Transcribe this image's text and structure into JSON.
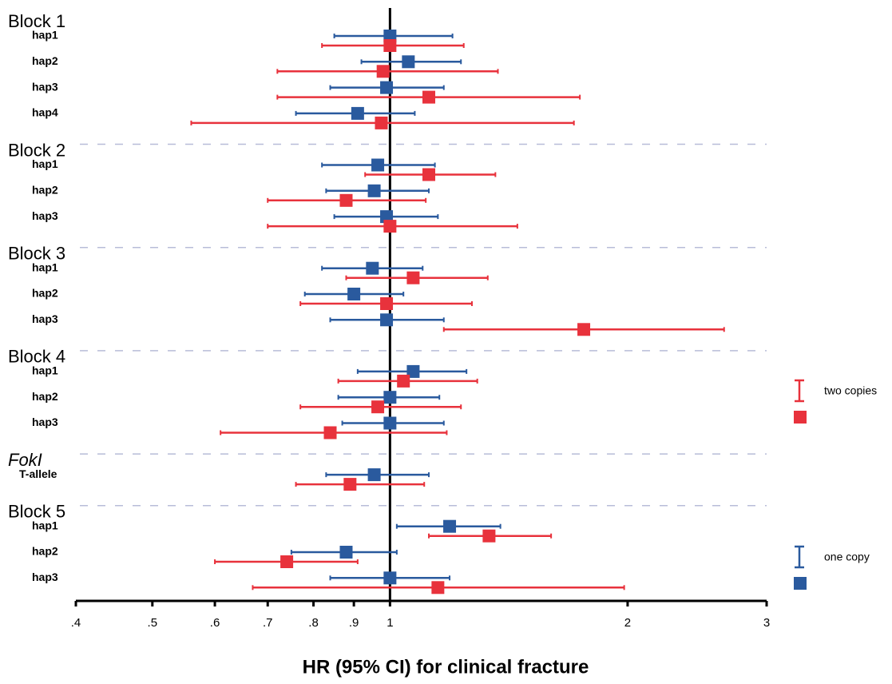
{
  "chart_data": {
    "type": "forest",
    "xlabel": "HR (95% CI) for clinical fracture",
    "xlim": [
      0.4,
      3
    ],
    "log_x": true,
    "reference_line": 1,
    "xticks": [
      {
        "value": 0.4,
        "label": ".4"
      },
      {
        "value": 0.5,
        "label": ".5"
      },
      {
        "value": 0.6,
        "label": ".6"
      },
      {
        "value": 0.7,
        "label": ".7"
      },
      {
        "value": 0.8,
        "label": ".8"
      },
      {
        "value": 0.9,
        "label": ".9"
      },
      1,
      2,
      3
    ],
    "groups": [
      {
        "name": "Block 1",
        "categories": [
          "hap1",
          "hap2",
          "hap3",
          "hap4"
        ]
      },
      {
        "name": "Block 2",
        "categories": [
          "hap1",
          "hap2",
          "hap3"
        ]
      },
      {
        "name": "Block 3",
        "categories": [
          "hap1",
          "hap2",
          "hap3"
        ]
      },
      {
        "name": "Block 4",
        "categories": [
          "hap1",
          "hap2",
          "hap3"
        ]
      },
      {
        "name": "FokI",
        "italic": true,
        "categories": [
          "T-allele"
        ]
      },
      {
        "name": "Block 5",
        "categories": [
          "hap1",
          "hap2",
          "hap3"
        ]
      }
    ],
    "series": [
      {
        "name": "one copy",
        "color": "#2a5a9e",
        "values": [
          1.0,
          1.055,
          0.99,
          0.91,
          0.965,
          0.955,
          0.99,
          0.95,
          0.9,
          0.99,
          1.07,
          1.0,
          1.0,
          0.955,
          1.19,
          0.88,
          1.0
        ],
        "lower": [
          0.85,
          0.92,
          0.84,
          0.76,
          0.82,
          0.83,
          0.85,
          0.82,
          0.78,
          0.84,
          0.91,
          0.86,
          0.87,
          0.83,
          1.02,
          0.75,
          0.84
        ],
        "upper": [
          1.2,
          1.23,
          1.17,
          1.075,
          1.14,
          1.12,
          1.15,
          1.1,
          1.04,
          1.17,
          1.25,
          1.155,
          1.17,
          1.12,
          1.38,
          1.02,
          1.19
        ]
      },
      {
        "name": "two copies",
        "color": "#e8323c",
        "values": [
          1.0,
          0.98,
          1.12,
          0.975,
          1.12,
          0.88,
          1.0,
          1.07,
          0.99,
          1.76,
          1.04,
          0.965,
          0.84,
          0.89,
          1.335,
          0.74,
          1.15
        ],
        "lower": [
          0.82,
          0.72,
          0.72,
          0.56,
          0.93,
          0.7,
          0.7,
          0.88,
          0.77,
          1.17,
          0.86,
          0.77,
          0.61,
          0.76,
          1.12,
          0.6,
          0.67
        ],
        "upper": [
          1.24,
          1.37,
          1.74,
          1.71,
          1.36,
          1.11,
          1.45,
          1.33,
          1.27,
          2.65,
          1.29,
          1.23,
          1.18,
          1.105,
          1.6,
          0.91,
          1.98
        ]
      }
    ]
  }
}
